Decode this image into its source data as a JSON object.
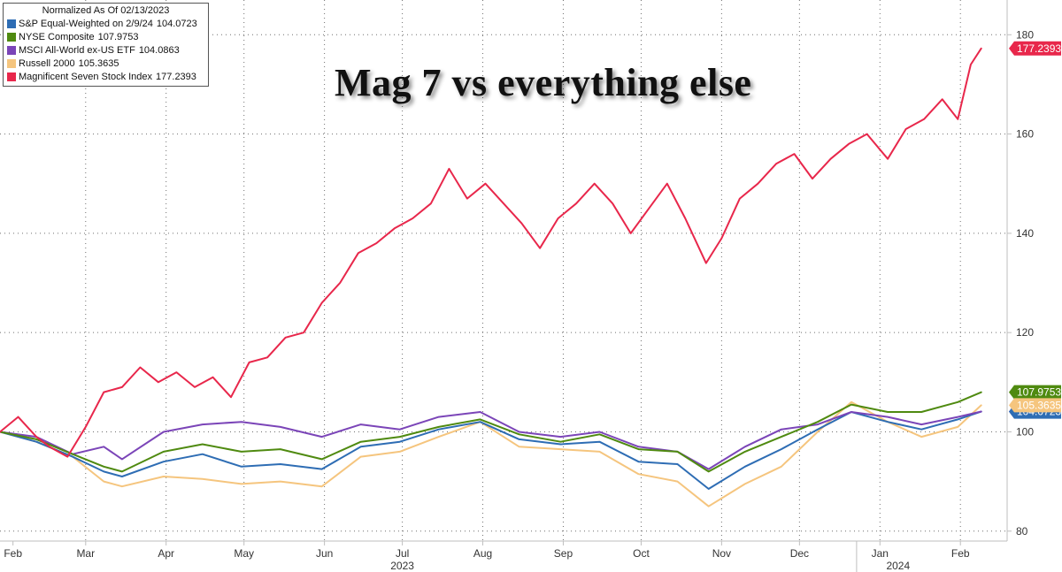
{
  "legend": {
    "title": "Normalized As Of 02/13/2023",
    "entries": [
      {
        "name": "S&P Equal-Weighted on 2/9/24",
        "value": "104.0723",
        "color": "#2e6db4"
      },
      {
        "name": "NYSE Composite",
        "value": "107.9753",
        "color": "#4f8a10"
      },
      {
        "name": "MSCI All-World ex-US ETF",
        "value": "104.0863",
        "color": "#7b45b8"
      },
      {
        "name": "Russell 2000",
        "value": "105.3635",
        "color": "#f5c57e"
      },
      {
        "name": "Magnificent Seven Stock Index",
        "value": "177.2393",
        "color": "#e8274b"
      }
    ]
  },
  "headline": "Mag 7 vs everything else",
  "chart_data": {
    "type": "line",
    "title": "Mag 7 vs everything else",
    "subtitle": "Normalized As Of 02/13/2023",
    "xlabel": "",
    "ylabel": "",
    "ylim": [
      78,
      187
    ],
    "x_domain": [
      "2023-01-27",
      "2024-02-19"
    ],
    "y_ticks": [
      80,
      100,
      120,
      140,
      160,
      180
    ],
    "x_ticks": [
      {
        "label": "Feb",
        "date": "2023-02-01"
      },
      {
        "label": "Mar",
        "date": "2023-03-01"
      },
      {
        "label": "Apr",
        "date": "2023-04-01"
      },
      {
        "label": "May",
        "date": "2023-05-01"
      },
      {
        "label": "Jun",
        "date": "2023-06-01"
      },
      {
        "label": "Jul",
        "date": "2023-07-01"
      },
      {
        "label": "Aug",
        "date": "2023-08-01"
      },
      {
        "label": "Sep",
        "date": "2023-09-01"
      },
      {
        "label": "Oct",
        "date": "2023-10-01"
      },
      {
        "label": "Nov",
        "date": "2023-11-01"
      },
      {
        "label": "Dec",
        "date": "2023-12-01"
      },
      {
        "label": "Jan",
        "date": "2024-01-01"
      },
      {
        "label": "Feb",
        "date": "2024-02-01"
      }
    ],
    "year_labels": [
      {
        "label": "2023",
        "date": "2023-07-01"
      },
      {
        "label": "2024",
        "date": "2024-01-08"
      }
    ],
    "year_divider_date": "2023-12-23",
    "grid": true,
    "legend_position": "top-left",
    "series": [
      {
        "name": "Magnificent Seven Stock Index",
        "color": "#e8274b",
        "last_label": "177.2393",
        "points": [
          [
            "2023-01-27",
            100
          ],
          [
            "2023-02-03",
            103
          ],
          [
            "2023-02-10",
            99
          ],
          [
            "2023-02-15",
            97
          ],
          [
            "2023-02-22",
            95
          ],
          [
            "2023-03-01",
            101
          ],
          [
            "2023-03-08",
            108
          ],
          [
            "2023-03-15",
            109
          ],
          [
            "2023-03-22",
            113
          ],
          [
            "2023-03-29",
            110
          ],
          [
            "2023-04-05",
            112
          ],
          [
            "2023-04-12",
            109
          ],
          [
            "2023-04-19",
            111
          ],
          [
            "2023-04-26",
            107
          ],
          [
            "2023-05-03",
            114
          ],
          [
            "2023-05-10",
            115
          ],
          [
            "2023-05-17",
            119
          ],
          [
            "2023-05-24",
            120
          ],
          [
            "2023-05-31",
            126
          ],
          [
            "2023-06-07",
            130
          ],
          [
            "2023-06-14",
            136
          ],
          [
            "2023-06-21",
            138
          ],
          [
            "2023-06-28",
            141
          ],
          [
            "2023-07-05",
            143
          ],
          [
            "2023-07-12",
            146
          ],
          [
            "2023-07-19",
            153
          ],
          [
            "2023-07-26",
            147
          ],
          [
            "2023-08-02",
            150
          ],
          [
            "2023-08-09",
            146
          ],
          [
            "2023-08-16",
            142
          ],
          [
            "2023-08-23",
            137
          ],
          [
            "2023-08-30",
            143
          ],
          [
            "2023-09-06",
            146
          ],
          [
            "2023-09-13",
            150
          ],
          [
            "2023-09-20",
            146
          ],
          [
            "2023-09-27",
            140
          ],
          [
            "2023-10-04",
            145
          ],
          [
            "2023-10-11",
            150
          ],
          [
            "2023-10-18",
            143
          ],
          [
            "2023-10-26",
            134
          ],
          [
            "2023-11-01",
            139
          ],
          [
            "2023-11-08",
            147
          ],
          [
            "2023-11-15",
            150
          ],
          [
            "2023-11-22",
            154
          ],
          [
            "2023-11-29",
            156
          ],
          [
            "2023-12-06",
            151
          ],
          [
            "2023-12-13",
            155
          ],
          [
            "2023-12-20",
            158
          ],
          [
            "2023-12-27",
            160
          ],
          [
            "2024-01-04",
            155
          ],
          [
            "2024-01-11",
            161
          ],
          [
            "2024-01-18",
            163
          ],
          [
            "2024-01-25",
            167
          ],
          [
            "2024-01-31",
            163
          ],
          [
            "2024-02-05",
            174
          ],
          [
            "2024-02-09",
            177.24
          ]
        ]
      },
      {
        "name": "NYSE Composite",
        "color": "#4f8a10",
        "last_label": "107.9753",
        "points": [
          [
            "2023-01-27",
            100
          ],
          [
            "2023-02-10",
            98.5
          ],
          [
            "2023-02-24",
            95.5
          ],
          [
            "2023-03-08",
            93
          ],
          [
            "2023-03-15",
            92
          ],
          [
            "2023-03-31",
            96
          ],
          [
            "2023-04-15",
            97.5
          ],
          [
            "2023-04-30",
            96
          ],
          [
            "2023-05-15",
            96.5
          ],
          [
            "2023-05-31",
            94.5
          ],
          [
            "2023-06-15",
            98
          ],
          [
            "2023-06-30",
            99
          ],
          [
            "2023-07-15",
            101
          ],
          [
            "2023-07-31",
            102.5
          ],
          [
            "2023-08-15",
            99.5
          ],
          [
            "2023-08-31",
            98
          ],
          [
            "2023-09-15",
            99.5
          ],
          [
            "2023-09-30",
            96.5
          ],
          [
            "2023-10-15",
            96
          ],
          [
            "2023-10-27",
            92
          ],
          [
            "2023-11-10",
            96
          ],
          [
            "2023-11-24",
            99
          ],
          [
            "2023-12-08",
            102
          ],
          [
            "2023-12-21",
            105.5
          ],
          [
            "2024-01-04",
            104
          ],
          [
            "2024-01-17",
            104
          ],
          [
            "2024-01-31",
            106
          ],
          [
            "2024-02-09",
            107.98
          ]
        ]
      },
      {
        "name": "MSCI All-World ex-US ETF",
        "color": "#7b45b8",
        "last_label": "104.0863",
        "points": [
          [
            "2023-01-27",
            100
          ],
          [
            "2023-02-10",
            99
          ],
          [
            "2023-02-24",
            95.5
          ],
          [
            "2023-03-08",
            97
          ],
          [
            "2023-03-15",
            94.5
          ],
          [
            "2023-03-31",
            100
          ],
          [
            "2023-04-15",
            101.5
          ],
          [
            "2023-04-30",
            102
          ],
          [
            "2023-05-15",
            101
          ],
          [
            "2023-05-31",
            99
          ],
          [
            "2023-06-15",
            101.5
          ],
          [
            "2023-06-30",
            100.5
          ],
          [
            "2023-07-15",
            103
          ],
          [
            "2023-07-31",
            104
          ],
          [
            "2023-08-15",
            100
          ],
          [
            "2023-08-31",
            99
          ],
          [
            "2023-09-15",
            100
          ],
          [
            "2023-09-30",
            97
          ],
          [
            "2023-10-15",
            96
          ],
          [
            "2023-10-27",
            92.5
          ],
          [
            "2023-11-10",
            97
          ],
          [
            "2023-11-24",
            100.5
          ],
          [
            "2023-12-08",
            101.5
          ],
          [
            "2023-12-21",
            104
          ],
          [
            "2024-01-04",
            103
          ],
          [
            "2024-01-17",
            101.5
          ],
          [
            "2024-01-31",
            103
          ],
          [
            "2024-02-09",
            104.09
          ]
        ]
      },
      {
        "name": "S&P Equal-Weighted on 2/9/24",
        "color": "#2e6db4",
        "last_label": "104.0723",
        "points": [
          [
            "2023-01-27",
            100
          ],
          [
            "2023-02-10",
            98
          ],
          [
            "2023-02-24",
            95
          ],
          [
            "2023-03-08",
            92
          ],
          [
            "2023-03-15",
            91
          ],
          [
            "2023-03-31",
            94
          ],
          [
            "2023-04-15",
            95.5
          ],
          [
            "2023-04-30",
            93
          ],
          [
            "2023-05-15",
            93.5
          ],
          [
            "2023-05-31",
            92.5
          ],
          [
            "2023-06-15",
            97
          ],
          [
            "2023-06-30",
            98
          ],
          [
            "2023-07-15",
            100.5
          ],
          [
            "2023-07-31",
            102
          ],
          [
            "2023-08-15",
            98.5
          ],
          [
            "2023-08-31",
            97.5
          ],
          [
            "2023-09-15",
            98
          ],
          [
            "2023-09-30",
            94
          ],
          [
            "2023-10-15",
            93.5
          ],
          [
            "2023-10-27",
            88.5
          ],
          [
            "2023-11-10",
            93
          ],
          [
            "2023-11-24",
            96.5
          ],
          [
            "2023-12-08",
            100.5
          ],
          [
            "2023-12-21",
            104
          ],
          [
            "2024-01-04",
            102
          ],
          [
            "2024-01-17",
            100.5
          ],
          [
            "2024-01-31",
            102.5
          ],
          [
            "2024-02-09",
            104.07
          ]
        ]
      },
      {
        "name": "Russell 2000",
        "color": "#f5c57e",
        "last_label": "105.3635",
        "points": [
          [
            "2023-01-27",
            100
          ],
          [
            "2023-02-10",
            98
          ],
          [
            "2023-02-24",
            95
          ],
          [
            "2023-03-08",
            90
          ],
          [
            "2023-03-15",
            89
          ],
          [
            "2023-03-31",
            91
          ],
          [
            "2023-04-15",
            90.5
          ],
          [
            "2023-04-30",
            89.5
          ],
          [
            "2023-05-15",
            90
          ],
          [
            "2023-05-31",
            89
          ],
          [
            "2023-06-15",
            95
          ],
          [
            "2023-06-30",
            96
          ],
          [
            "2023-07-15",
            99
          ],
          [
            "2023-07-31",
            102
          ],
          [
            "2023-08-15",
            97
          ],
          [
            "2023-08-31",
            96.5
          ],
          [
            "2023-09-15",
            96
          ],
          [
            "2023-09-30",
            91.5
          ],
          [
            "2023-10-15",
            90
          ],
          [
            "2023-10-27",
            85
          ],
          [
            "2023-11-10",
            89.5
          ],
          [
            "2023-11-24",
            93
          ],
          [
            "2023-12-08",
            100
          ],
          [
            "2023-12-21",
            106
          ],
          [
            "2024-01-04",
            102
          ],
          [
            "2024-01-17",
            99
          ],
          [
            "2024-01-31",
            101
          ],
          [
            "2024-02-09",
            105.36
          ]
        ]
      }
    ]
  }
}
